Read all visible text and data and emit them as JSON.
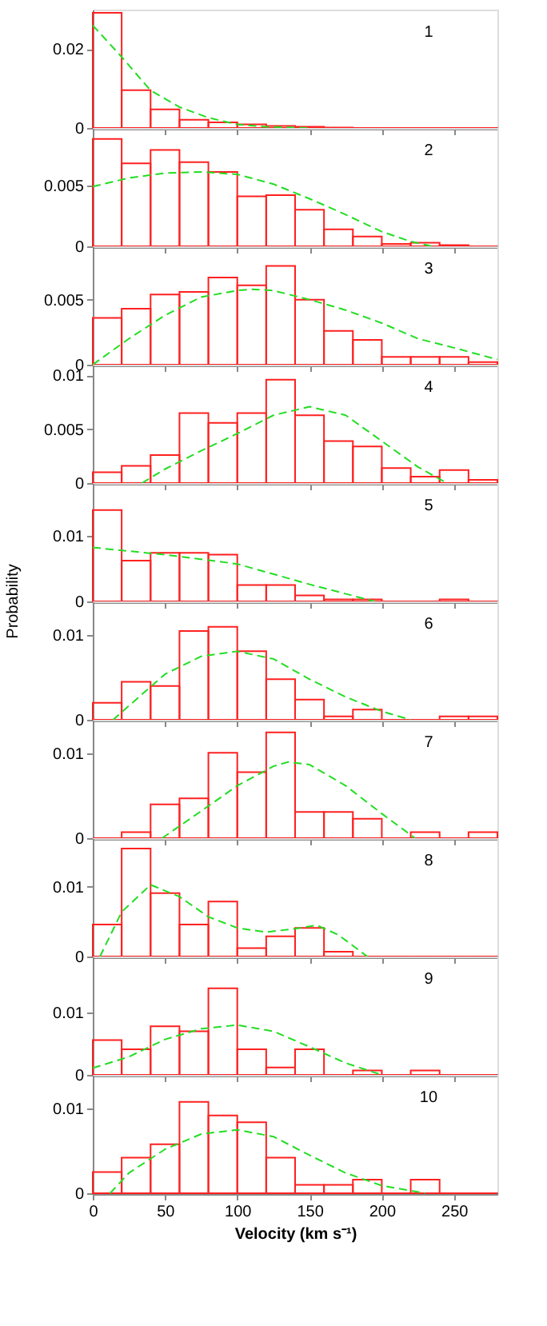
{
  "chart_data": [
    {
      "type": "histogram",
      "annotations": [
        "1"
      ],
      "xlim": [
        0,
        280
      ],
      "xticks": [
        0,
        50,
        100,
        150,
        200,
        250
      ],
      "ylim": [
        0,
        0.03
      ],
      "yticks": [
        0,
        0.02
      ],
      "tick_labels": "y",
      "grid": false,
      "series": [
        {
          "type": "histogram",
          "color": "#ff2020",
          "bins": [
            0,
            20,
            40,
            60,
            80,
            100,
            120,
            140,
            160,
            180,
            200,
            220,
            240,
            260,
            280
          ],
          "values": [
            0.0292,
            0.0096,
            0.0047,
            0.0021,
            0.0014,
            0.0009,
            0.0005,
            0.0003,
            0.0001,
            0,
            0,
            0,
            0,
            0
          ]
        },
        {
          "type": "line",
          "color": "#22dd22",
          "line_style": "dashed",
          "x": [
            0,
            20,
            40,
            60,
            80,
            100,
            120,
            140,
            150
          ],
          "values": [
            0.026,
            0.018,
            0.0095,
            0.0053,
            0.0026,
            0.0009,
            0.0003,
            0.0001,
            0
          ]
        }
      ]
    },
    {
      "type": "histogram",
      "annotations": [
        "2"
      ],
      "xlim": [
        0,
        280
      ],
      "xticks": [
        0,
        50,
        100,
        150,
        200,
        250
      ],
      "ylim": [
        0,
        0.0097
      ],
      "yticks": [
        0,
        0.005
      ],
      "tick_labels": "y",
      "grid": false,
      "series": [
        {
          "type": "histogram",
          "color": "#ff2020",
          "bins": [
            0,
            20,
            40,
            60,
            80,
            100,
            120,
            140,
            160,
            180,
            200,
            220,
            240,
            260,
            280
          ],
          "values": [
            0.0088,
            0.0068,
            0.0079,
            0.0069,
            0.0061,
            0.0041,
            0.0042,
            0.003,
            0.0014,
            0.0008,
            0.0002,
            0.0003,
            0.0001,
            0
          ]
        },
        {
          "type": "line",
          "color": "#22dd22",
          "line_style": "dashed",
          "x": [
            0,
            25,
            50,
            75,
            100,
            125,
            150,
            175,
            200,
            220,
            235
          ],
          "values": [
            0.0049,
            0.0056,
            0.006,
            0.0061,
            0.0059,
            0.0051,
            0.0039,
            0.0026,
            0.0012,
            0.0004,
            0
          ]
        }
      ]
    },
    {
      "type": "histogram",
      "annotations": [
        "3"
      ],
      "xlim": [
        0,
        280
      ],
      "xticks": [
        0,
        50,
        100,
        150,
        200,
        250
      ],
      "ylim": [
        0,
        0.0091
      ],
      "yticks": [
        0,
        0.005
      ],
      "tick_labels": "y",
      "grid": false,
      "series": [
        {
          "type": "histogram",
          "color": "#ff2020",
          "bins": [
            0,
            20,
            40,
            60,
            80,
            100,
            120,
            140,
            160,
            180,
            200,
            220,
            240,
            260,
            280
          ],
          "values": [
            0.0036,
            0.0043,
            0.0054,
            0.0056,
            0.0067,
            0.0061,
            0.0076,
            0.005,
            0.0026,
            0.0019,
            0.0006,
            0.0006,
            0.0006,
            0.0002
          ]
        },
        {
          "type": "line",
          "color": "#22dd22",
          "line_style": "dashed",
          "x": [
            0,
            25,
            50,
            75,
            100,
            110,
            125,
            150,
            175,
            200,
            225,
            250,
            280
          ],
          "values": [
            0,
            0.002,
            0.0038,
            0.0052,
            0.0057,
            0.0058,
            0.0057,
            0.005,
            0.0042,
            0.0032,
            0.002,
            0.0013,
            0.0004
          ]
        }
      ]
    },
    {
      "type": "histogram",
      "annotations": [
        "4"
      ],
      "xlim": [
        0,
        280
      ],
      "xticks": [
        0,
        50,
        100,
        150,
        200,
        250
      ],
      "ylim": [
        0,
        0.011
      ],
      "yticks": [
        0,
        0.005,
        0.01
      ],
      "tick_labels": "y",
      "grid": false,
      "series": [
        {
          "type": "histogram",
          "color": "#ff2020",
          "bins": [
            0,
            20,
            40,
            60,
            80,
            100,
            120,
            140,
            160,
            180,
            200,
            220,
            240,
            260,
            280
          ],
          "values": [
            0.001,
            0.0016,
            0.0026,
            0.0065,
            0.0056,
            0.0065,
            0.0096,
            0.0063,
            0.0039,
            0.0034,
            0.0014,
            0.0006,
            0.0012,
            0.0003
          ]
        },
        {
          "type": "line",
          "color": "#22dd22",
          "line_style": "dashed",
          "x": [
            34,
            50,
            75,
            100,
            125,
            150,
            175,
            200,
            225,
            245
          ],
          "values": [
            0,
            0.0013,
            0.003,
            0.0046,
            0.0063,
            0.0071,
            0.0063,
            0.0039,
            0.0015,
            0
          ]
        }
      ]
    },
    {
      "type": "histogram",
      "annotations": [
        "5"
      ],
      "ylabel": "Probability",
      "xlim": [
        0,
        280
      ],
      "xticks": [
        0,
        50,
        100,
        150,
        200,
        250
      ],
      "ylim": [
        0,
        0.018
      ],
      "yticks": [
        0,
        0.01
      ],
      "tick_labels": "y",
      "grid": false,
      "series": [
        {
          "type": "histogram",
          "color": "#ff2020",
          "bins": [
            0,
            20,
            40,
            60,
            80,
            100,
            120,
            140,
            160,
            180,
            200,
            220,
            240,
            260,
            280
          ],
          "values": [
            0.0139,
            0.0062,
            0.0074,
            0.0074,
            0.0071,
            0.0025,
            0.0025,
            0.0009,
            0.0003,
            0.0003,
            0,
            0,
            0.0003,
            0
          ]
        },
        {
          "type": "line",
          "color": "#22dd22",
          "line_style": "dashed",
          "x": [
            0,
            50,
            100,
            150,
            195
          ],
          "values": [
            0.0082,
            0.0071,
            0.0057,
            0.0026,
            0
          ]
        }
      ]
    },
    {
      "type": "histogram",
      "annotations": [
        "6"
      ],
      "xlim": [
        0,
        280
      ],
      "xticks": [
        0,
        50,
        100,
        150,
        200,
        250
      ],
      "ylim": [
        0,
        0.014
      ],
      "yticks": [
        0,
        0.01
      ],
      "tick_labels": "y",
      "grid": false,
      "series": [
        {
          "type": "histogram",
          "color": "#ff2020",
          "bins": [
            0,
            20,
            40,
            60,
            80,
            100,
            120,
            140,
            160,
            180,
            200,
            220,
            240,
            260,
            280
          ],
          "values": [
            0.002,
            0.0045,
            0.004,
            0.0105,
            0.011,
            0.0081,
            0.0048,
            0.0024,
            0.0004,
            0.0012,
            0,
            0,
            0.0004,
            0.0004
          ]
        },
        {
          "type": "line",
          "color": "#22dd22",
          "line_style": "dashed",
          "x": [
            14,
            50,
            75,
            100,
            125,
            150,
            175,
            200,
            220
          ],
          "values": [
            0,
            0.0054,
            0.0075,
            0.0081,
            0.0072,
            0.0048,
            0.0027,
            0.001,
            0
          ]
        }
      ]
    },
    {
      "type": "histogram",
      "annotations": [
        "7"
      ],
      "xlim": [
        0,
        280
      ],
      "xticks": [
        0,
        50,
        100,
        150,
        200,
        250
      ],
      "ylim": [
        0,
        0.014
      ],
      "yticks": [
        0,
        0.01
      ],
      "tick_labels": "y",
      "grid": false,
      "series": [
        {
          "type": "histogram",
          "color": "#ff2020",
          "bins": [
            0,
            20,
            40,
            60,
            80,
            100,
            120,
            140,
            160,
            180,
            200,
            220,
            240,
            260,
            280
          ],
          "values": [
            0,
            0.0007,
            0.004,
            0.0047,
            0.0101,
            0.0078,
            0.0125,
            0.0031,
            0.0031,
            0.0023,
            0,
            0.0007,
            0,
            0.0007
          ]
        },
        {
          "type": "line",
          "color": "#22dd22",
          "line_style": "dashed",
          "x": [
            48,
            75,
            100,
            125,
            135,
            150,
            175,
            200,
            223
          ],
          "values": [
            0,
            0.0032,
            0.0062,
            0.0085,
            0.009,
            0.0087,
            0.0062,
            0.0029,
            0
          ]
        }
      ]
    },
    {
      "type": "histogram",
      "annotations": [
        "8"
      ],
      "xlim": [
        0,
        280
      ],
      "xticks": [
        0,
        50,
        100,
        150,
        200,
        250
      ],
      "ylim": [
        0,
        0.017
      ],
      "yticks": [
        0,
        0.01
      ],
      "tick_labels": "y",
      "grid": false,
      "series": [
        {
          "type": "histogram",
          "color": "#ff2020",
          "bins": [
            0,
            20,
            40,
            60,
            80,
            100,
            120,
            140,
            160,
            180,
            200,
            220,
            240,
            260,
            280
          ],
          "values": [
            0.0046,
            0.0155,
            0.0091,
            0.0046,
            0.0079,
            0.0012,
            0.0029,
            0.0041,
            0.0007,
            0,
            0,
            0,
            0,
            0
          ]
        },
        {
          "type": "line",
          "color": "#22dd22",
          "line_style": "dashed",
          "x": [
            5,
            20,
            40,
            60,
            80,
            100,
            120,
            140,
            155,
            170,
            190
          ],
          "values": [
            0,
            0.0064,
            0.0103,
            0.0086,
            0.0057,
            0.0041,
            0.0035,
            0.004,
            0.0045,
            0.0031,
            0
          ]
        }
      ]
    },
    {
      "type": "histogram",
      "annotations": [
        "9"
      ],
      "xlim": [
        0,
        280
      ],
      "xticks": [
        0,
        50,
        100,
        150,
        200,
        250
      ],
      "ylim": [
        0,
        0.019
      ],
      "yticks": [
        0,
        0.01
      ],
      "tick_labels": "y",
      "grid": false,
      "series": [
        {
          "type": "histogram",
          "color": "#ff2020",
          "bins": [
            0,
            20,
            40,
            60,
            80,
            100,
            120,
            140,
            160,
            180,
            200,
            220,
            240,
            260,
            280
          ],
          "values": [
            0.0056,
            0.0041,
            0.0078,
            0.007,
            0.0139,
            0.0041,
            0.0012,
            0.0041,
            0,
            0.0007,
            0,
            0.0007,
            0,
            0
          ]
        },
        {
          "type": "line",
          "color": "#22dd22",
          "line_style": "dashed",
          "x": [
            0,
            25,
            50,
            75,
            100,
            125,
            150,
            175,
            200
          ],
          "values": [
            0.0011,
            0.0029,
            0.0057,
            0.0074,
            0.008,
            0.007,
            0.0045,
            0.0019,
            0
          ]
        }
      ]
    },
    {
      "type": "histogram",
      "annotations": [
        "10"
      ],
      "xlabel": "Velocity (km s⁻¹)",
      "xlim": [
        0,
        280
      ],
      "xticks": [
        0,
        50,
        100,
        150,
        200,
        250
      ],
      "ylim": [
        0,
        0.014
      ],
      "yticks": [
        0,
        0.01
      ],
      "grid": false,
      "series": [
        {
          "type": "histogram",
          "color": "#ff2020",
          "bins": [
            0,
            20,
            40,
            60,
            80,
            100,
            120,
            140,
            160,
            180,
            200,
            220,
            240,
            260,
            280
          ],
          "values": [
            0.0025,
            0.0042,
            0.0058,
            0.0108,
            0.0092,
            0.0084,
            0.0042,
            0.001,
            0.001,
            0.0016,
            0,
            0.0016,
            0,
            0
          ]
        },
        {
          "type": "line",
          "color": "#22dd22",
          "line_style": "dashed",
          "x": [
            12,
            25,
            50,
            75,
            100,
            125,
            150,
            175,
            200,
            230
          ],
          "values": [
            0,
            0.0024,
            0.0052,
            0.007,
            0.0075,
            0.0067,
            0.0045,
            0.0024,
            0.0009,
            0
          ]
        }
      ]
    }
  ]
}
